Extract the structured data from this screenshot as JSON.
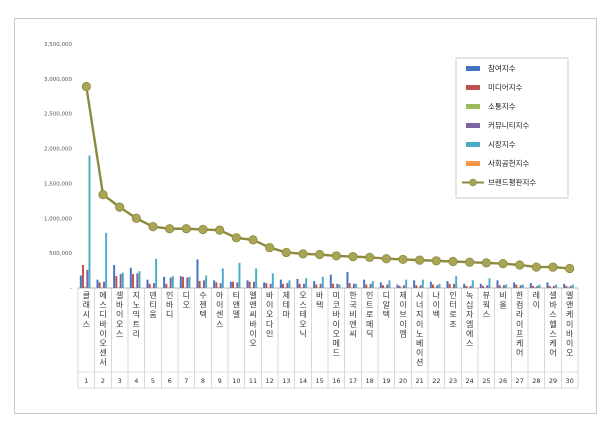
{
  "chart_data": {
    "type": "bar",
    "title": "",
    "xlabel": "",
    "ylabel": "",
    "ylim": [
      0,
      3500000
    ],
    "yticks": [
      "-",
      "500,000",
      "1,000,000",
      "1,500,000",
      "2,000,000",
      "2,500,000",
      "3,000,000",
      "3,500,000"
    ],
    "grid": false,
    "legend_position": "right",
    "categories": [
      "클래시스",
      "에스디바이오센서",
      "셀바이오스",
      "지노믹트리",
      "덴티움",
      "인바디",
      "디오",
      "수젠텍",
      "아이센스",
      "티앤엘",
      "엘앤씨바이오",
      "바이오다인",
      "제테마",
      "오스테오닉",
      "바텍",
      "미코바이오메드",
      "한국비엔씨",
      "인트로메딕",
      "디알텍",
      "제이브이엠",
      "시너지이노베이션",
      "나이벡",
      "인터로조",
      "녹십자엠에스",
      "뷰웍스",
      "비올",
      "한컴라이프케어",
      "레이",
      "셀바스헬스케어",
      "엘앤케이바이오"
    ],
    "category_numbers": [
      "1",
      "2",
      "3",
      "4",
      "5",
      "6",
      "7",
      "8",
      "9",
      "10",
      "11",
      "12",
      "13",
      "14",
      "15",
      "16",
      "17",
      "18",
      "19",
      "20",
      "21",
      "22",
      "23",
      "24",
      "25",
      "26",
      "27",
      "28",
      "29",
      "30"
    ],
    "series": [
      {
        "name": "참여지수",
        "kind": "bar",
        "color": "#4472c4",
        "values": [
          180000,
          120000,
          330000,
          290000,
          120000,
          160000,
          170000,
          410000,
          110000,
          90000,
          110000,
          80000,
          120000,
          130000,
          100000,
          190000,
          230000,
          120000,
          80000,
          50000,
          110000,
          90000,
          100000,
          60000,
          60000,
          110000,
          80000,
          70000,
          80000,
          60000
        ]
      },
      {
        "name": "미디어지수",
        "kind": "bar",
        "color": "#c0504d",
        "values": [
          330000,
          80000,
          170000,
          200000,
          60000,
          60000,
          160000,
          100000,
          80000,
          90000,
          90000,
          70000,
          60000,
          60000,
          50000,
          60000,
          70000,
          50000,
          40000,
          30000,
          40000,
          50000,
          60000,
          30000,
          30000,
          40000,
          50000,
          30000,
          30000,
          30000
        ]
      },
      {
        "name": "소통지수",
        "kind": "bar",
        "color": "#9bbb59",
        "values": [
          20000,
          10000,
          10000,
          10000,
          10000,
          10000,
          10000,
          10000,
          10000,
          10000,
          10000,
          10000,
          10000,
          10000,
          10000,
          10000,
          10000,
          10000,
          10000,
          10000,
          10000,
          10000,
          10000,
          10000,
          10000,
          10000,
          10000,
          10000,
          10000,
          10000
        ]
      },
      {
        "name": "커뮤니티지수",
        "kind": "bar",
        "color": "#8064a2",
        "values": [
          260000,
          90000,
          200000,
          210000,
          70000,
          150000,
          150000,
          110000,
          70000,
          80000,
          90000,
          60000,
          70000,
          60000,
          60000,
          60000,
          60000,
          60000,
          50000,
          40000,
          40000,
          40000,
          60000,
          30000,
          40000,
          40000,
          40000,
          30000,
          30000,
          30000
        ]
      },
      {
        "name": "시장지수",
        "kind": "bar",
        "color": "#4bacc6",
        "values": [
          1900000,
          790000,
          220000,
          240000,
          420000,
          170000,
          160000,
          180000,
          280000,
          360000,
          280000,
          210000,
          110000,
          140000,
          160000,
          50000,
          60000,
          100000,
          110000,
          120000,
          120000,
          60000,
          170000,
          110000,
          140000,
          50000,
          50000,
          50000,
          50000,
          50000
        ]
      },
      {
        "name": "사회공헌지수",
        "kind": "bar",
        "color": "#f79646",
        "values": [
          5000,
          5000,
          5000,
          5000,
          5000,
          5000,
          5000,
          5000,
          5000,
          5000,
          5000,
          5000,
          5000,
          5000,
          5000,
          5000,
          5000,
          5000,
          5000,
          5000,
          5000,
          5000,
          5000,
          5000,
          5000,
          5000,
          5000,
          5000,
          5000,
          5000
        ]
      },
      {
        "name": "브랜드평판지수",
        "kind": "line",
        "color": "#8b8a3e",
        "marker_color": "#a8a656",
        "values": [
          2890000,
          1340000,
          1160000,
          1000000,
          880000,
          850000,
          850000,
          840000,
          830000,
          720000,
          690000,
          580000,
          510000,
          490000,
          480000,
          460000,
          450000,
          440000,
          420000,
          410000,
          400000,
          390000,
          380000,
          370000,
          360000,
          350000,
          330000,
          300000,
          300000,
          280000
        ]
      }
    ]
  }
}
